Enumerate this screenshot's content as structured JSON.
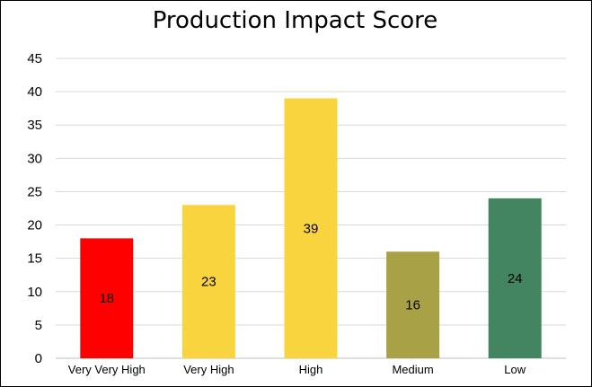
{
  "chart_data": {
    "type": "bar",
    "title": "Production Impact Score",
    "xlabel": "",
    "ylabel": "",
    "categories": [
      "Very Very High",
      "Very High",
      "High",
      "Medium",
      "Low"
    ],
    "values": [
      18,
      23,
      39,
      16,
      24
    ],
    "data_labels": [
      "18",
      "23",
      "39",
      "16",
      "24"
    ],
    "colors": [
      "#ff0000",
      "#f9d43e",
      "#f9d43e",
      "#a9a146",
      "#428560"
    ],
    "ylim": [
      0,
      45
    ],
    "yticks": [
      0,
      5,
      10,
      15,
      20,
      25,
      30,
      35,
      40,
      45
    ],
    "grid": true,
    "legend": "none"
  }
}
